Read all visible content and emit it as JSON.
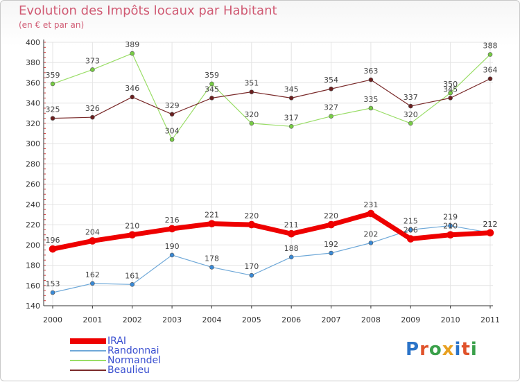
{
  "title": "Evolution des Impôts locaux par Habitant",
  "subtitle": "(en € et par an)",
  "brand": {
    "text": "Proxiti",
    "letter_colors": [
      "#2a73c8",
      "#e0522a",
      "#3aa04a",
      "#e8a020",
      "#2a73c8",
      "#e0522a",
      "#3aa04a"
    ]
  },
  "chart_data": {
    "type": "line",
    "x": [
      "2000",
      "2001",
      "2002",
      "2003",
      "2004",
      "2005",
      "2006",
      "2007",
      "2008",
      "2009",
      "2010",
      "2011"
    ],
    "ylim": [
      140,
      400
    ],
    "yticks": [
      140,
      160,
      180,
      200,
      220,
      240,
      260,
      280,
      300,
      320,
      340,
      360,
      380,
      400
    ],
    "grid": true,
    "legend_position": "bottom-left",
    "series": [
      {
        "name": "IRAI",
        "color": "#ee0000",
        "width": 7,
        "point": "#ee0000",
        "values": [
          196,
          204,
          210,
          216,
          221,
          220,
          211,
          220,
          231,
          206,
          210,
          212
        ]
      },
      {
        "name": "Randonnai",
        "color": "#6ea8d8",
        "width": 1.2,
        "point": "#3a8ad6",
        "values": [
          153,
          162,
          161,
          190,
          178,
          170,
          188,
          192,
          202,
          215,
          219,
          212
        ]
      },
      {
        "name": "Normandel",
        "color": "#99dd66",
        "width": 1.2,
        "point": "#77cc44",
        "values": [
          359,
          373,
          389,
          304,
          359,
          320,
          317,
          327,
          335,
          320,
          350,
          388
        ]
      },
      {
        "name": "Beaulieu",
        "color": "#7a2a2a",
        "width": 1.2,
        "point": "#6a1f1f",
        "values": [
          325,
          326,
          346,
          329,
          345,
          351,
          345,
          354,
          363,
          337,
          345,
          364
        ]
      }
    ]
  }
}
